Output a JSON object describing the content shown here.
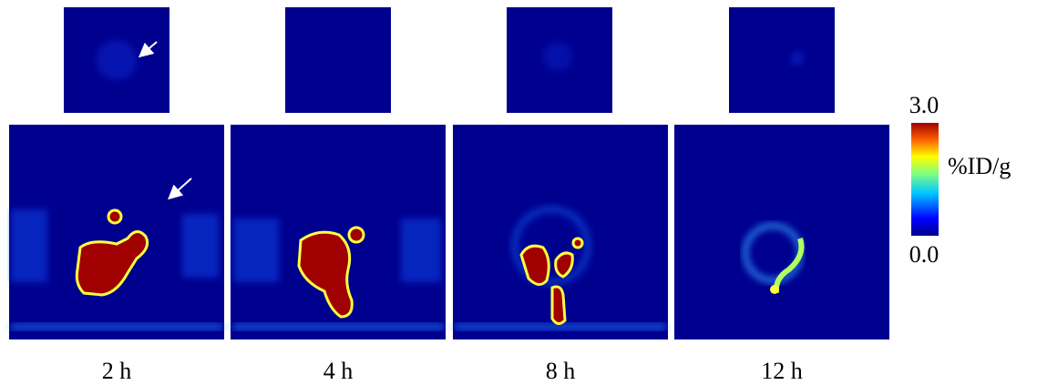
{
  "panels": [
    {
      "label": "2 h"
    },
    {
      "label": "4 h"
    },
    {
      "label": "8 h"
    },
    {
      "label": "12 h"
    }
  ],
  "colorbar": {
    "max_label": "3.0",
    "min_label": "0.0",
    "unit": "%ID/g"
  }
}
